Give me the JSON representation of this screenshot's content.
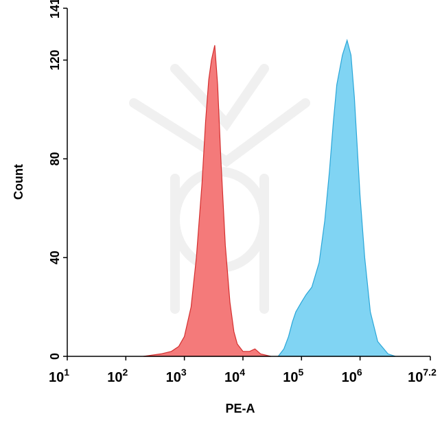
{
  "chart_data": {
    "type": "area",
    "x_label": "PE-A",
    "y_label": "Count",
    "xscale": "log",
    "xlim": [
      10,
      15848931.92
    ],
    "ylim": [
      0,
      141
    ],
    "xticks": [
      {
        "value": 10,
        "label": "10",
        "exponent": "1"
      },
      {
        "value": 100,
        "label": "10",
        "exponent": "2"
      },
      {
        "value": 1000,
        "label": "10",
        "exponent": "3"
      },
      {
        "value": 10000,
        "label": "10",
        "exponent": "4"
      },
      {
        "value": 100000,
        "label": "10",
        "exponent": "5"
      },
      {
        "value": 1000000,
        "label": "10",
        "exponent": "6"
      },
      {
        "value": 15848931.92,
        "label": "10",
        "exponent": "7.2"
      }
    ],
    "yticks": [
      0,
      40,
      80,
      120,
      141
    ],
    "series": [
      {
        "color": "#f47a7a",
        "stroke": "#d42e2e",
        "x": [
          200,
          400,
          600,
          800,
          1000,
          1300,
          1600,
          2000,
          2300,
          2600,
          2900,
          3300,
          3700,
          4200,
          5000,
          6000,
          7000,
          8000,
          10000,
          13000,
          16000,
          20000,
          30000
        ],
        "values": [
          0,
          1,
          2,
          4,
          8,
          20,
          40,
          70,
          95,
          112,
          120,
          126,
          110,
          80,
          45,
          22,
          10,
          5,
          2,
          2,
          3,
          1,
          0
        ]
      },
      {
        "color": "#80d4f3",
        "stroke": "#2aa6d8",
        "x": [
          40000,
          50000,
          60000,
          70000,
          80000,
          100000,
          120000,
          150000,
          200000,
          250000,
          300000,
          350000,
          400000,
          500000,
          600000,
          700000,
          800000,
          1000000,
          1200000,
          1500000,
          2000000,
          3000000,
          4000000
        ],
        "values": [
          0,
          3,
          8,
          14,
          18,
          22,
          25,
          28,
          38,
          55,
          75,
          95,
          110,
          122,
          128,
          122,
          105,
          65,
          40,
          18,
          6,
          1,
          0
        ]
      }
    ]
  }
}
